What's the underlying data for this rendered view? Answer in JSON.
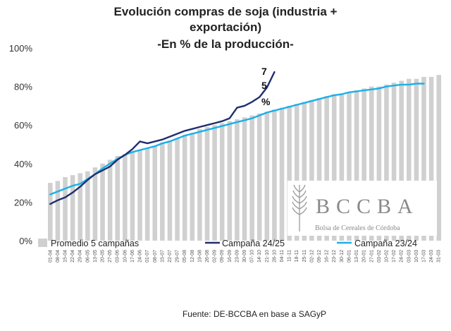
{
  "chart_data": {
    "type": "bar",
    "title_lines": [
      "Evolución compras de soja (industria +",
      "exportación)",
      "-En % de la producción-"
    ],
    "xlabel": "",
    "ylabel": "",
    "ylim": [
      0,
      100
    ],
    "y_ticks": [
      "0%",
      "20%",
      "40%",
      "60%",
      "80%",
      "100%"
    ],
    "x_tick_labels": [
      "01-04",
      "08-04",
      "15-04",
      "22-04",
      "29-04",
      "06-05",
      "13-05",
      "20-05",
      "27-05",
      "03-06",
      "10-06",
      "17-06",
      "24-06",
      "01-07",
      "08-07",
      "15-07",
      "22-07",
      "29-07",
      "05-08",
      "12-08",
      "19-08",
      "26-08",
      "02-09",
      "09-09",
      "16-09",
      "23-09",
      "30-09",
      "07-10",
      "14-10",
      "21-10",
      "28-10",
      "04-11",
      "11-11",
      "18-11",
      "25-11",
      "02-12",
      "09-12",
      "16-12",
      "23-12",
      "30-12",
      "06-01",
      "13-01",
      "20-01",
      "27-01",
      "03-02",
      "10-02",
      "17-02",
      "24-02",
      "03-03",
      "10-03",
      "17-03",
      "24-03",
      "31-03"
    ],
    "series": [
      {
        "name": "Promedio 5 campañas",
        "kind": "bar",
        "color": "#d0d0d0",
        "values": [
          30,
          31,
          33,
          34,
          35,
          36,
          38,
          40,
          42,
          44,
          45,
          46,
          47,
          48,
          49,
          51,
          52,
          53,
          55,
          56,
          58,
          59,
          60,
          61,
          62,
          63,
          64,
          65,
          66,
          67,
          68,
          69,
          70,
          71,
          72,
          73,
          74,
          75,
          76,
          76,
          77,
          78,
          79,
          80,
          80,
          81,
          82,
          83,
          84,
          84,
          85,
          85,
          86
        ]
      },
      {
        "name": "Campaña 24/25",
        "kind": "line",
        "color": "#1f2f6e",
        "values": [
          19,
          21,
          22.5,
          25,
          28,
          31.5,
          34.5,
          36.5,
          38.5,
          42,
          44.5,
          47.5,
          51.5,
          50.5,
          51.5,
          52.5,
          54,
          55.5,
          57,
          58,
          59,
          60,
          61,
          62,
          63.5,
          69,
          70,
          72,
          74.5,
          79.5,
          87.5,
          null,
          null,
          null,
          null,
          null,
          null,
          null,
          null,
          null,
          null,
          null,
          null,
          null,
          null,
          null,
          null,
          null,
          null,
          null,
          null,
          null,
          null
        ]
      },
      {
        "name": "Campaña 23/24",
        "kind": "line",
        "color": "#1ab0ea",
        "values": [
          24,
          25.5,
          27,
          28.5,
          29.5,
          32,
          34.5,
          37.5,
          40,
          42.5,
          44.5,
          46,
          47,
          48,
          49,
          50.5,
          51.5,
          53,
          54.5,
          55.5,
          56.5,
          57.5,
          58.5,
          59.5,
          60.5,
          61.5,
          62.5,
          63.5,
          65,
          66.5,
          67.5,
          68.5,
          69.5,
          70.5,
          71.5,
          72.5,
          73.5,
          74.5,
          75.5,
          76,
          77,
          77.5,
          78,
          78.5,
          79,
          80,
          80.5,
          81,
          81,
          81.5,
          81.5,
          null,
          null
        ]
      }
    ],
    "annotation": {
      "text_chars": [
        "7",
        "5",
        "%"
      ]
    },
    "legend_position": "bottom-inside",
    "grid": false
  },
  "logo": {
    "letters": "BCCBA",
    "subtitle": "Bolsa de Cereales de Córdoba"
  },
  "source": "Fuente: DE-BCCBA en base a SAGyP"
}
